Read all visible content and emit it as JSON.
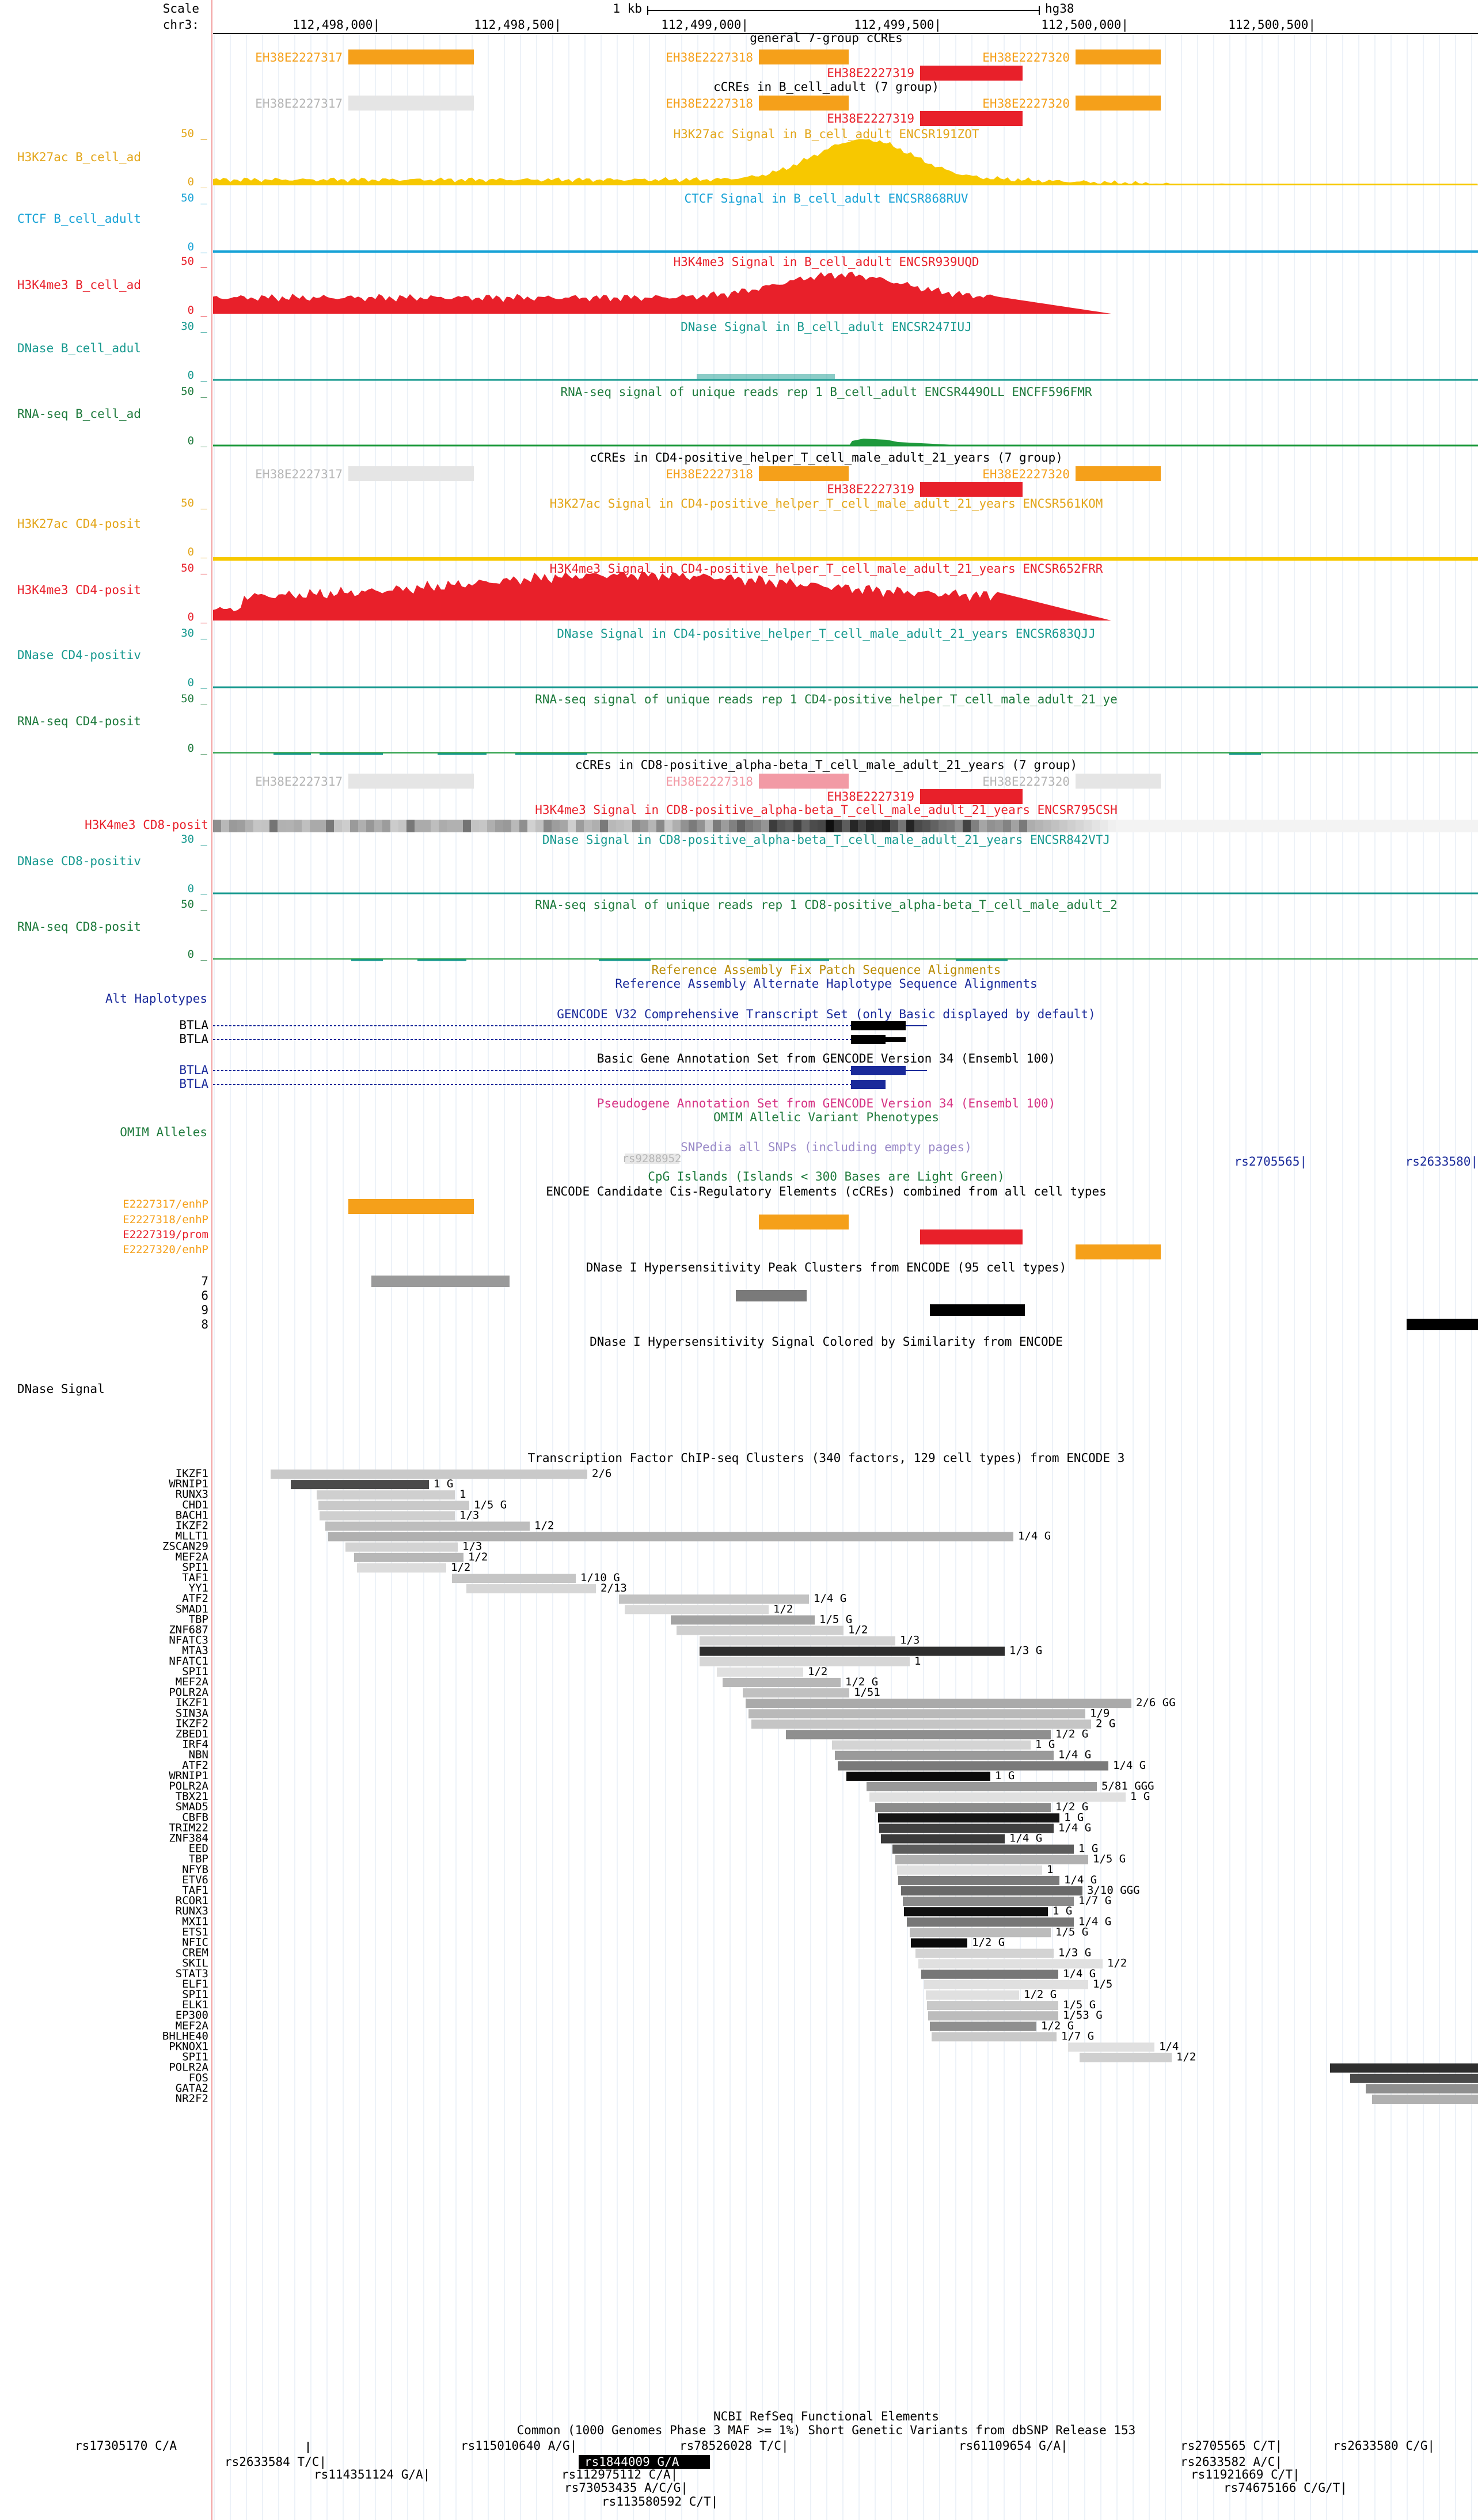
{
  "header": {
    "scale_label": "Scale",
    "chrom_label": "chr3:",
    "scale_bar_label": "1 kb",
    "assembly": "hg38",
    "positions": [
      "112,498,000|",
      "112,498,500|",
      "112,499,000|",
      "112,499,500|",
      "112,500,000|",
      "112,500,500|"
    ]
  },
  "colors": {
    "orange": "#f5a01a",
    "red": "#e8202a",
    "yellow": "#f7c800",
    "cyan": "#17a2d6",
    "teal": "#17998f",
    "green": "#1e9a3c",
    "pink": "#f29aa5",
    "navy": "#1a2a9a",
    "gray_light": "#e5e5e5",
    "guide_line": "#c8d6ea",
    "left_border": "#f2a1a1"
  },
  "left_labels": [
    {
      "text": "H3K27ac B_cell_ad",
      "color": "#e3a61a"
    },
    {
      "text": "CTCF B_cell_adult",
      "color": "#17a2d6"
    },
    {
      "text": "H3K4me3 B_cell_ad",
      "color": "#e8202a"
    },
    {
      "text": "DNase B_cell_adul",
      "color": "#17998f"
    },
    {
      "text": "RNA-seq B_cell_ad",
      "color": "#1e7a3c"
    },
    {
      "text": "H3K27ac CD4-posit",
      "color": "#e3a61a"
    },
    {
      "text": "H3K4me3 CD4-posit",
      "color": "#e8202a"
    },
    {
      "text": "DNase CD4-positiv",
      "color": "#17998f"
    },
    {
      "text": "RNA-seq CD4-posit",
      "color": "#1e7a3c"
    },
    {
      "text": "H3K4me3 CD8-posit",
      "color": "#e8202a"
    },
    {
      "text": "DNase CD8-positiv",
      "color": "#17998f"
    },
    {
      "text": "RNA-seq CD8-posit",
      "color": "#1e7a3c"
    },
    {
      "text": "Alt Haplotypes",
      "color": "#1a2a9a"
    },
    {
      "text": "OMIM Alleles",
      "color": "#1e7a3c"
    },
    {
      "text": "E2227317/enhP",
      "color": "#f5a01a"
    },
    {
      "text": "E2227318/enhP",
      "color": "#f5a01a"
    },
    {
      "text": "E2227319/prom",
      "color": "#e8202a"
    },
    {
      "text": "E2227320/enhP",
      "color": "#f5a01a"
    },
    {
      "text": "DNase Signal",
      "color": "#000000"
    }
  ],
  "scale_values": [
    "50 _",
    "0 _",
    "50 _",
    "0 _",
    "50 _",
    "0 _",
    "30 _",
    "0 _",
    "50 _",
    "0 _",
    "50 _",
    "0 _",
    "50 _",
    "0 _",
    "30 _",
    "0 _",
    "50 _",
    "0 _",
    "30 _",
    "0 _",
    "50 _",
    "0 _"
  ],
  "track_titles": [
    {
      "text": "general 7-group cCREs",
      "color": "#000000"
    },
    {
      "text": "cCREs in B_cell_adult (7 group)",
      "color": "#000000"
    },
    {
      "text": "H3K27ac Signal in B_cell_adult ENCSR191ZOT",
      "color": "#e3a61a"
    },
    {
      "text": "CTCF Signal in B_cell_adult ENCSR868RUV",
      "color": "#17a2d6"
    },
    {
      "text": "H3K4me3 Signal in B_cell_adult ENCSR939UQD",
      "color": "#e8202a"
    },
    {
      "text": "DNase Signal in B_cell_adult ENCSR247IUJ",
      "color": "#17998f"
    },
    {
      "text": "RNA-seq signal of unique reads rep 1 B_cell_adult ENCSR449OLL ENCFF596FMR",
      "color": "#1e7a3c"
    },
    {
      "text": "cCREs in CD4-positive_helper_T_cell_male_adult_21_years (7 group)",
      "color": "#000000"
    },
    {
      "text": "H3K27ac Signal in CD4-positive_helper_T_cell_male_adult_21_years ENCSR561KOM",
      "color": "#e3a61a"
    },
    {
      "text": "H3K4me3 Signal in CD4-positive_helper_T_cell_male_adult_21_years ENCSR652FRR",
      "color": "#e8202a"
    },
    {
      "text": "DNase Signal in CD4-positive_helper_T_cell_male_adult_21_years ENCSR683QJJ",
      "color": "#17998f"
    },
    {
      "text": "RNA-seq signal of unique reads rep 1 CD4-positive_helper_T_cell_male_adult_21_ye",
      "color": "#1e7a3c"
    },
    {
      "text": "cCREs in CD8-positive_alpha-beta_T_cell_male_adult_21_years (7 group)",
      "color": "#000000"
    },
    {
      "text": "H3K4me3 Signal in CD8-positive_alpha-beta_T_cell_male_adult_21_years ENCSR795CSH",
      "color": "#e8202a"
    },
    {
      "text": "DNase Signal in CD8-positive_alpha-beta_T_cell_male_adult_21_years ENCSR842VTJ",
      "color": "#17998f"
    },
    {
      "text": "RNA-seq signal of unique reads rep 1 CD8-positive_alpha-beta_T_cell_male_adult_2",
      "color": "#1e7a3c"
    },
    {
      "text": "Reference Assembly Fix Patch Sequence Alignments",
      "color": "#b88a00"
    },
    {
      "text": "Reference Assembly Alternate Haplotype Sequence Alignments",
      "color": "#1a2a9a"
    },
    {
      "text": "GENCODE V32 Comprehensive Transcript Set (only Basic displayed by default)",
      "color": "#1a2a9a"
    },
    {
      "text": "Basic Gene Annotation Set from GENCODE Version 34 (Ensembl 100)",
      "color": "#000000"
    },
    {
      "text": "Pseudogene Annotation Set from GENCODE Version 34 (Ensembl 100)",
      "color": "#d63384"
    },
    {
      "text": "OMIM Allelic Variant Phenotypes",
      "color": "#1e7a3c"
    },
    {
      "text": "SNPedia all SNPs (including empty pages)",
      "color": "#9a8ac8"
    },
    {
      "text": "CpG Islands (Islands < 300 Bases are Light Green)",
      "color": "#1e7a3c"
    },
    {
      "text": "ENCODE Candidate Cis-Regulatory Elements (cCREs) combined from all cell types",
      "color": "#000000"
    },
    {
      "text": "DNase I Hypersensitivity Peak Clusters from ENCODE (95 cell types)",
      "color": "#000000"
    },
    {
      "text": "DNase I Hypersensitivity Signal Colored by Similarity from ENCODE",
      "color": "#000000"
    },
    {
      "text": "Transcription Factor ChIP-seq Clusters (340 factors, 129 cell types) from ENCODE 3",
      "color": "#000000"
    },
    {
      "text": "NCBI RefSeq Functional Elements",
      "color": "#000000"
    },
    {
      "text": "Common (1000 Genomes Phase 3 MAF >= 1%) Short Genetic Variants from dbSNP Release 153",
      "color": "#000000"
    }
  ],
  "ccre_labels": {
    "general": [
      "EH38E2227317",
      "EH38E2227318",
      "EH38E2227319",
      "EH38E2227320"
    ],
    "b_cell": [
      "EH38E2227317",
      "EH38E2227318",
      "EH38E2227319",
      "EH38E2227320"
    ],
    "cd4": [
      "EH38E2227317",
      "EH38E2227318",
      "EH38E2227319",
      "EH38E2227320"
    ],
    "cd8": [
      "EH38E2227317",
      "EH38E2227318",
      "EH38E2227319",
      "EH38E2227320"
    ]
  },
  "gene_labels": [
    "BTLA",
    "BTLA",
    "BTLA",
    "BTLA"
  ],
  "dnase_cluster_labels": [
    "7",
    "6",
    "9",
    "8"
  ],
  "snpedia_label": "rs9288952",
  "omim_labels": [
    "rs2705565|",
    "rs2633580|"
  ],
  "tf_clusters": [
    {
      "name": "IKZF1",
      "label": "2/6",
      "bar": [
        470,
        1020
      ],
      "shade": "#c9c9c9"
    },
    {
      "name": "WRNIP1",
      "label": "1 G",
      "bar": [
        505,
        745
      ],
      "shade": "#4a4a4a"
    },
    {
      "name": "RUNX3",
      "label": "1",
      "bar": [
        550,
        790
      ],
      "shade": "#cfcfcf"
    },
    {
      "name": "CHD1",
      "label": "1/5 G",
      "bar": [
        553,
        815
      ],
      "shade": "#c9c9c9"
    },
    {
      "name": "BACH1",
      "label": "1/3",
      "bar": [
        555,
        790
      ],
      "shade": "#cfcfcf"
    },
    {
      "name": "IKZF2",
      "label": "1/2",
      "bar": [
        565,
        920
      ],
      "shade": "#bdbdbd"
    },
    {
      "name": "MLLT1",
      "label": "1/4 G",
      "bar": [
        570,
        1760
      ],
      "shade": "#b0b0b0"
    },
    {
      "name": "ZSCAN29",
      "label": "1/3",
      "bar": [
        600,
        795
      ],
      "shade": "#d3d3d3"
    },
    {
      "name": "MEF2A",
      "label": "1/2",
      "bar": [
        615,
        805
      ],
      "shade": "#b7b7b7"
    },
    {
      "name": "SPI1",
      "label": "1/2",
      "bar": [
        620,
        775
      ],
      "shade": "#dcdcdc"
    },
    {
      "name": "TAF1",
      "label": "1/10 G",
      "bar": [
        785,
        1000
      ],
      "shade": "#c5c5c5"
    },
    {
      "name": "YY1",
      "label": "2/13",
      "bar": [
        810,
        1035
      ],
      "shade": "#d6d6d6"
    },
    {
      "name": "ATF2",
      "label": "1/4 G",
      "bar": [
        1075,
        1405
      ],
      "shade": "#c2c2c2"
    },
    {
      "name": "SMAD1",
      "label": "1/2",
      "bar": [
        1085,
        1335
      ],
      "shade": "#d9d9d9"
    },
    {
      "name": "TBP",
      "label": "1/5 G",
      "bar": [
        1165,
        1415
      ],
      "shade": "#a3a3a3"
    },
    {
      "name": "ZNF687",
      "label": "1/2",
      "bar": [
        1175,
        1465
      ],
      "shade": "#cfcfcf"
    },
    {
      "name": "NFATC3",
      "label": "1/3",
      "bar": [
        1215,
        1555
      ],
      "shade": "#d3d3d3"
    },
    {
      "name": "MTA3",
      "label": "1/3 G",
      "bar": [
        1215,
        1745
      ],
      "shade": "#2e2e2e"
    },
    {
      "name": "NFATC1",
      "label": "1",
      "bar": [
        1215,
        1580
      ],
      "shade": "#d6d6d6"
    },
    {
      "name": "SPI1",
      "label": "1/2",
      "bar": [
        1245,
        1395
      ],
      "shade": "#e0e0e0"
    },
    {
      "name": "MEF2A",
      "label": "1/2 G",
      "bar": [
        1255,
        1460
      ],
      "shade": "#b7b7b7"
    },
    {
      "name": "POLR2A",
      "label": "1/51",
      "bar": [
        1290,
        1475
      ],
      "shade": "#c0c0c0"
    },
    {
      "name": "IKZF1",
      "label": "2/6 GG",
      "bar": [
        1295,
        1965
      ],
      "shade": "#aaaaaa"
    },
    {
      "name": "SIN3A",
      "label": "1/9",
      "bar": [
        1300,
        1885
      ],
      "shade": "#b9b9b9"
    },
    {
      "name": "IKZF2",
      "label": "2 G",
      "bar": [
        1305,
        1895
      ],
      "shade": "#c5c5c5"
    },
    {
      "name": "ZBED1",
      "label": "1/2 G",
      "bar": [
        1365,
        1825
      ],
      "shade": "#8f8f8f"
    },
    {
      "name": "IRF4",
      "label": "1 G",
      "bar": [
        1445,
        1790
      ],
      "shade": "#d4d4d4"
    },
    {
      "name": "NBN",
      "label": "1/4 G",
      "bar": [
        1450,
        1830
      ],
      "shade": "#9a9a9a"
    },
    {
      "name": "ATF2",
      "label": "1/4 G",
      "bar": [
        1455,
        1925
      ],
      "shade": "#7a7a7a"
    },
    {
      "name": "WRNIP1",
      "label": "1 G",
      "bar": [
        1470,
        1720
      ],
      "shade": "#0a0a0a"
    },
    {
      "name": "POLR2A",
      "label": "5/81 GGG",
      "bar": [
        1505,
        1905
      ],
      "shade": "#999999"
    },
    {
      "name": "TBX21",
      "label": "1 G",
      "bar": [
        1510,
        1955
      ],
      "shade": "#e0e0e0"
    },
    {
      "name": "SMAD5",
      "label": "1/2 G",
      "bar": [
        1520,
        1825
      ],
      "shade": "#8c8c8c"
    },
    {
      "name": "CBFB",
      "label": "1 G",
      "bar": [
        1525,
        1840
      ],
      "shade": "#151515"
    },
    {
      "name": "TRIM22",
      "label": "1/4 G",
      "bar": [
        1527,
        1830
      ],
      "shade": "#404040"
    },
    {
      "name": "ZNF384",
      "label": "1/4 G",
      "bar": [
        1530,
        1745
      ],
      "shade": "#3a3a3a"
    },
    {
      "name": "EED",
      "label": "1 G",
      "bar": [
        1550,
        1865
      ],
      "shade": "#5c5c5c"
    },
    {
      "name": "TBP",
      "label": "1/5 G",
      "bar": [
        1555,
        1890
      ],
      "shade": "#b0b0b0"
    },
    {
      "name": "NFYB",
      "label": "1",
      "bar": [
        1558,
        1810
      ],
      "shade": "#e0e0e0"
    },
    {
      "name": "ETV6",
      "label": "1/4 G",
      "bar": [
        1560,
        1840
      ],
      "shade": "#7a7a7a"
    },
    {
      "name": "TAF1",
      "label": "3/10 GGG",
      "bar": [
        1565,
        1880
      ],
      "shade": "#696969"
    },
    {
      "name": "RCOR1",
      "label": "1/7 G",
      "bar": [
        1568,
        1865
      ],
      "shade": "#8a8a8a"
    },
    {
      "name": "RUNX3",
      "label": "1 G",
      "bar": [
        1570,
        1820
      ],
      "shade": "#101010"
    },
    {
      "name": "MXI1",
      "label": "1/4 G",
      "bar": [
        1575,
        1865
      ],
      "shade": "#777777"
    },
    {
      "name": "ETS1",
      "label": "1/5 G",
      "bar": [
        1580,
        1825
      ],
      "shade": "#bcbcbc"
    },
    {
      "name": "NFIC",
      "label": "1/2 G",
      "bar": [
        1582,
        1680
      ],
      "shade": "#0a0a0a"
    },
    {
      "name": "CREM",
      "label": "1/3 G",
      "bar": [
        1590,
        1830
      ],
      "shade": "#d3d3d3"
    },
    {
      "name": "SKIL",
      "label": "1/2",
      "bar": [
        1595,
        1915
      ],
      "shade": "#e0e0e0"
    },
    {
      "name": "STAT3",
      "label": "1/4 G",
      "bar": [
        1600,
        1838
      ],
      "shade": "#777777"
    },
    {
      "name": "ELF1",
      "label": "1/5",
      "bar": [
        1605,
        1890
      ],
      "shade": "#e0e0e0"
    },
    {
      "name": "SPI1",
      "label": "1/2 G",
      "bar": [
        1608,
        1770
      ],
      "shade": "#e0e0e0"
    },
    {
      "name": "ELK1",
      "label": "1/5 G",
      "bar": [
        1610,
        1838
      ],
      "shade": "#c9c9c9"
    },
    {
      "name": "EP300",
      "label": "1/53 G",
      "bar": [
        1612,
        1838
      ],
      "shade": "#bcbcbc"
    },
    {
      "name": "MEF2A",
      "label": "1/2 G",
      "bar": [
        1615,
        1800
      ],
      "shade": "#8f8f8f"
    },
    {
      "name": "BHLHE40",
      "label": "1/7 G",
      "bar": [
        1618,
        1835
      ],
      "shade": "#c9c9c9"
    },
    {
      "name": "PKNOX1",
      "label": "1/4",
      "bar": [
        1855,
        2005
      ],
      "shade": "#e0e0e0"
    },
    {
      "name": "SPI1",
      "label": "1/2",
      "bar": [
        1875,
        2035
      ],
      "shade": "#cfcfcf"
    },
    {
      "name": "POLR2A",
      "label": "",
      "bar": [
        2310,
        2567
      ],
      "shade": "#2e2e2e"
    },
    {
      "name": "FOS",
      "label": "",
      "bar": [
        2345,
        2567
      ],
      "shade": "#4a4a4a"
    },
    {
      "name": "GATA2",
      "label": "",
      "bar": [
        2372,
        2567
      ],
      "shade": "#8f8f8f"
    },
    {
      "name": "NR2F2",
      "label": "",
      "bar": [
        2383,
        2567
      ],
      "shade": "#b0b0b0"
    }
  ],
  "snp_labels": [
    {
      "text": "rs17305170 C/A"
    },
    {
      "text": "rs2633584 T/C|"
    },
    {
      "text": "rs114351124 G/A|"
    },
    {
      "text": "rs115010640 A/G|"
    },
    {
      "text": "rs1844009 G/A"
    },
    {
      "text": "rs112975112 C/A|"
    },
    {
      "text": "rs73053435 A/C/G|"
    },
    {
      "text": "rs113580592 C/T|"
    },
    {
      "text": "rs78526028 T/C|"
    },
    {
      "text": "rs61109654 G/A|"
    },
    {
      "text": "rs2705565 C/T|"
    },
    {
      "text": "rs2633582 A/C|"
    },
    {
      "text": "rs11921669 C/T|"
    },
    {
      "text": "rs74675166 C/G/T|"
    },
    {
      "text": "rs2633580 C/G|"
    }
  ]
}
